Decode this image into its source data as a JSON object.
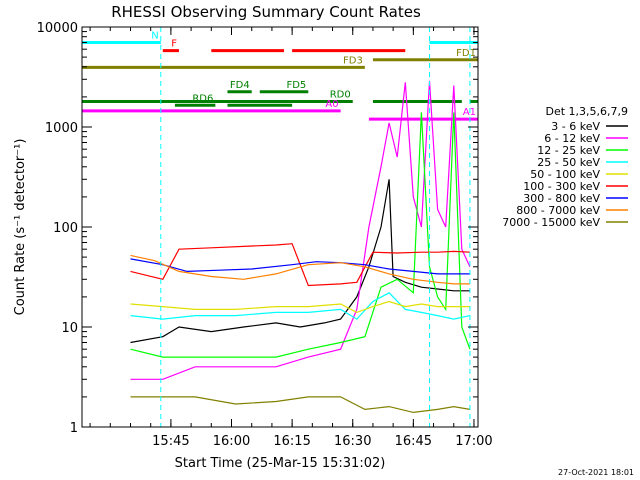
{
  "chart_data": {
    "type": "line",
    "title": "RHESSI Observing Summary Count Rates",
    "xlabel": "Start Time (25-Mar-15 15:31:02)",
    "ylabel": "Count Rate (s⁻¹ detector⁻¹)",
    "x_range_minutes": [
      -8,
      90
    ],
    "ylim": [
      1,
      10000
    ],
    "yscale": "log",
    "x_ticks": [
      {
        "label": "15:45",
        "minute": 14
      },
      {
        "label": "16:00",
        "minute": 29
      },
      {
        "label": "16:15",
        "minute": 44
      },
      {
        "label": "16:30",
        "minute": 59
      },
      {
        "label": "16:45",
        "minute": 74
      },
      {
        "label": "17:00",
        "minute": 89
      }
    ],
    "y_ticks": [
      {
        "label": "1",
        "value": 1
      },
      {
        "label": "10",
        "value": 10
      },
      {
        "label": "100",
        "value": 100
      },
      {
        "label": "1000",
        "value": 1000
      },
      {
        "label": "10000",
        "value": 10000
      }
    ],
    "detectors_label": "Det 1,3,5,6,7,9",
    "series": [
      {
        "name": "3 - 6 keV",
        "color": "#000000",
        "points": [
          [
            4,
            7
          ],
          [
            12,
            8
          ],
          [
            16,
            10
          ],
          [
            24,
            9
          ],
          [
            32,
            10
          ],
          [
            40,
            11
          ],
          [
            46,
            10
          ],
          [
            52,
            11
          ],
          [
            56,
            12
          ],
          [
            60,
            20
          ],
          [
            63,
            40
          ],
          [
            66,
            100
          ],
          [
            68,
            300
          ],
          [
            69,
            32
          ],
          [
            72,
            28
          ],
          [
            76,
            25
          ],
          [
            80,
            24
          ],
          [
            84,
            23
          ],
          [
            88,
            23
          ]
        ]
      },
      {
        "name": "6 - 12 keV",
        "color": "#ff00ff",
        "points": [
          [
            4,
            3
          ],
          [
            12,
            3
          ],
          [
            20,
            4
          ],
          [
            30,
            4
          ],
          [
            40,
            4
          ],
          [
            48,
            5
          ],
          [
            56,
            6
          ],
          [
            60,
            15
          ],
          [
            63,
            100
          ],
          [
            66,
            400
          ],
          [
            68,
            1100
          ],
          [
            70,
            500
          ],
          [
            72,
            2800
          ],
          [
            74,
            200
          ],
          [
            76,
            100
          ],
          [
            78,
            2900
          ],
          [
            80,
            150
          ],
          [
            82,
            100
          ],
          [
            84,
            2600
          ],
          [
            86,
            60
          ],
          [
            88,
            40
          ]
        ]
      },
      {
        "name": "12 - 25 keV",
        "color": "#00ff00",
        "points": [
          [
            4,
            6
          ],
          [
            12,
            5
          ],
          [
            20,
            5
          ],
          [
            30,
            5
          ],
          [
            40,
            5
          ],
          [
            48,
            6
          ],
          [
            56,
            7
          ],
          [
            62,
            8
          ],
          [
            66,
            25
          ],
          [
            70,
            30
          ],
          [
            74,
            22
          ],
          [
            76,
            1400
          ],
          [
            78,
            40
          ],
          [
            80,
            20
          ],
          [
            82,
            15
          ],
          [
            84,
            1400
          ],
          [
            86,
            10
          ],
          [
            88,
            6
          ]
        ]
      },
      {
        "name": "25 - 50 keV",
        "color": "#00ffff",
        "points": [
          [
            4,
            13
          ],
          [
            12,
            12
          ],
          [
            20,
            13
          ],
          [
            30,
            13
          ],
          [
            40,
            14
          ],
          [
            48,
            14
          ],
          [
            56,
            15
          ],
          [
            60,
            12
          ],
          [
            64,
            18
          ],
          [
            68,
            22
          ],
          [
            72,
            15
          ],
          [
            76,
            14
          ],
          [
            80,
            13
          ],
          [
            84,
            12
          ],
          [
            88,
            13
          ]
        ]
      },
      {
        "name": "50 - 100 keV",
        "color": "#e0e000",
        "points": [
          [
            4,
            17
          ],
          [
            12,
            16
          ],
          [
            20,
            15
          ],
          [
            30,
            15
          ],
          [
            40,
            16
          ],
          [
            48,
            16
          ],
          [
            56,
            17
          ],
          [
            60,
            14
          ],
          [
            64,
            16
          ],
          [
            68,
            18
          ],
          [
            72,
            16
          ],
          [
            76,
            17
          ],
          [
            80,
            16
          ],
          [
            84,
            16
          ],
          [
            88,
            16
          ]
        ]
      },
      {
        "name": "100 - 300 keV",
        "color": "#ff0000",
        "points": [
          [
            4,
            36
          ],
          [
            12,
            30
          ],
          [
            16,
            60
          ],
          [
            24,
            62
          ],
          [
            32,
            64
          ],
          [
            40,
            66
          ],
          [
            44,
            68
          ],
          [
            48,
            26
          ],
          [
            56,
            27
          ],
          [
            60,
            28
          ],
          [
            64,
            56
          ],
          [
            70,
            55
          ],
          [
            76,
            56
          ],
          [
            80,
            56
          ],
          [
            84,
            57
          ],
          [
            88,
            56
          ]
        ]
      },
      {
        "name": "300 - 800 keV",
        "color": "#0000ff",
        "points": [
          [
            4,
            48
          ],
          [
            12,
            42
          ],
          [
            18,
            36
          ],
          [
            26,
            37
          ],
          [
            34,
            38
          ],
          [
            44,
            42
          ],
          [
            50,
            45
          ],
          [
            56,
            44
          ],
          [
            62,
            42
          ],
          [
            68,
            38
          ],
          [
            74,
            36
          ],
          [
            80,
            34
          ],
          [
            84,
            34
          ],
          [
            88,
            34
          ]
        ]
      },
      {
        "name": "800 - 7000 keV",
        "color": "#ff8000",
        "points": [
          [
            4,
            52
          ],
          [
            10,
            46
          ],
          [
            16,
            36
          ],
          [
            24,
            32
          ],
          [
            32,
            30
          ],
          [
            40,
            34
          ],
          [
            48,
            42
          ],
          [
            56,
            44
          ],
          [
            62,
            40
          ],
          [
            68,
            34
          ],
          [
            74,
            30
          ],
          [
            80,
            28
          ],
          [
            84,
            27
          ],
          [
            88,
            27
          ]
        ]
      },
      {
        "name": "7000 - 15000 keV",
        "color": "#808000",
        "points": [
          [
            4,
            2
          ],
          [
            12,
            2
          ],
          [
            20,
            2
          ],
          [
            30,
            1.7
          ],
          [
            40,
            1.8
          ],
          [
            48,
            2
          ],
          [
            56,
            2
          ],
          [
            62,
            1.5
          ],
          [
            68,
            1.6
          ],
          [
            74,
            1.4
          ],
          [
            80,
            1.5
          ],
          [
            84,
            1.6
          ],
          [
            88,
            1.5
          ]
        ]
      }
    ],
    "flags": [
      {
        "label": "N",
        "color": "#00ffff",
        "value": 7000,
        "segments": [
          [
            -8,
            11.5
          ],
          [
            78,
            90
          ]
        ]
      },
      {
        "label": "F",
        "color": "#ff0000",
        "value": 5800,
        "segments": [
          [
            12,
            16
          ],
          [
            24,
            42
          ],
          [
            44,
            72
          ]
        ]
      },
      {
        "label": "FD1",
        "color": "#808000",
        "value": 4700,
        "segments": [
          [
            64,
            90
          ]
        ]
      },
      {
        "label": "FD3",
        "color": "#808000",
        "value": 3950,
        "segments": [
          [
            -8,
            62
          ]
        ]
      },
      {
        "label": "FD4",
        "color": "#008000",
        "value": 2250,
        "segments": [
          [
            28,
            34
          ]
        ]
      },
      {
        "label": "FD5",
        "color": "#008000",
        "value": 2250,
        "segments": [
          [
            36,
            48
          ]
        ]
      },
      {
        "label": "RD0",
        "color": "#008000",
        "value": 1800,
        "segments": [
          [
            -8,
            59
          ],
          [
            64,
            86
          ],
          [
            88,
            90
          ]
        ]
      },
      {
        "label": "RD6",
        "color": "#008000",
        "value": 1650,
        "segments": [
          [
            15,
            25
          ],
          [
            28,
            44
          ]
        ]
      },
      {
        "label": "A0",
        "color": "#ff00ff",
        "value": 1450,
        "segments": [
          [
            -8,
            56
          ]
        ]
      },
      {
        "label": "A1",
        "color": "#ff00ff",
        "value": 1200,
        "segments": [
          [
            63,
            90
          ]
        ]
      }
    ],
    "vertical_markers": [
      {
        "minute": 11.5,
        "color": "#00ffff",
        "style": "dashed"
      },
      {
        "minute": 78,
        "color": "#00ffff",
        "style": "dashed"
      },
      {
        "minute": 88,
        "color": "#00ffff",
        "style": "dashed"
      }
    ],
    "timestamp": "27-Oct-2021 18:01"
  }
}
